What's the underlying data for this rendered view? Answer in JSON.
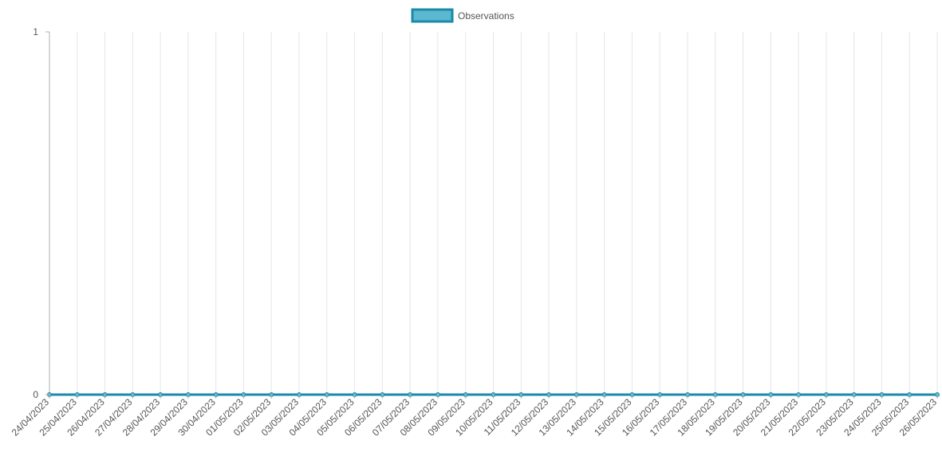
{
  "chart_data": {
    "type": "line",
    "title": "",
    "xlabel": "",
    "ylabel": "",
    "x": [
      "24/04/2023",
      "25/04/2023",
      "26/04/2023",
      "27/04/2023",
      "28/04/2023",
      "29/04/2023",
      "30/04/2023",
      "01/05/2023",
      "02/05/2023",
      "03/05/2023",
      "04/05/2023",
      "05/05/2023",
      "06/05/2023",
      "07/05/2023",
      "08/05/2023",
      "09/05/2023",
      "10/05/2023",
      "11/05/2023",
      "12/05/2023",
      "13/05/2023",
      "14/05/2023",
      "15/05/2023",
      "16/05/2023",
      "17/05/2023",
      "18/05/2023",
      "19/05/2023",
      "20/05/2023",
      "21/05/2023",
      "22/05/2023",
      "23/05/2023",
      "24/05/2023",
      "25/05/2023",
      "26/05/2023"
    ],
    "series": [
      {
        "name": "Observations",
        "values": [
          0,
          0,
          0,
          0,
          0,
          0,
          0,
          0,
          0,
          0,
          0,
          0,
          0,
          0,
          0,
          0,
          0,
          0,
          0,
          0,
          0,
          0,
          0,
          0,
          0,
          0,
          0,
          0,
          0,
          0,
          0,
          0,
          0
        ],
        "color": "#1a8aa8",
        "fill": "#5bb8d0"
      }
    ],
    "ylim": [
      0,
      1
    ],
    "yticks": [
      0,
      1
    ],
    "grid": {
      "vertical": true,
      "horizontal": false
    },
    "legend": "top-center"
  },
  "colors": {
    "axis": "#b0b0b0",
    "grid": "#e6e6e6",
    "tick_text": "#555555",
    "legend_text": "#555555"
  }
}
